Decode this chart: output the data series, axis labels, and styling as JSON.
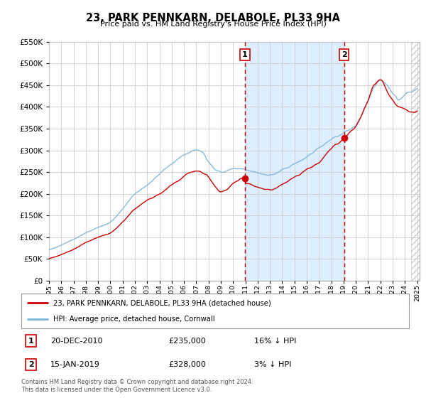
{
  "title": "23, PARK PENNKARN, DELABOLE, PL33 9HA",
  "subtitle": "Price paid vs. HM Land Registry's House Price Index (HPI)",
  "legend_line1": "23, PARK PENNKARN, DELABOLE, PL33 9HA (detached house)",
  "legend_line2": "HPI: Average price, detached house, Cornwall",
  "transaction1_date": "20-DEC-2010",
  "transaction1_price": 235000,
  "transaction1_note": "16% ↓ HPI",
  "transaction2_date": "15-JAN-2019",
  "transaction2_price": 328000,
  "transaction2_note": "3% ↓ HPI",
  "footnote": "Contains HM Land Registry data © Crown copyright and database right 2024.\nThis data is licensed under the Open Government Licence v3.0.",
  "hpi_color": "#7ab4d8",
  "price_color": "#cc0000",
  "highlight_color": "#ddeeff",
  "vline_color": "#cc0000",
  "ylim": [
    0,
    550000
  ],
  "yticks": [
    0,
    50000,
    100000,
    150000,
    200000,
    250000,
    300000,
    350000,
    400000,
    450000,
    500000,
    550000
  ],
  "grid_color": "#cccccc",
  "bg_color": "#ffffff",
  "hatch_color": "#bbbbbb",
  "t1_year": 2010.96,
  "t2_year": 2019.04
}
